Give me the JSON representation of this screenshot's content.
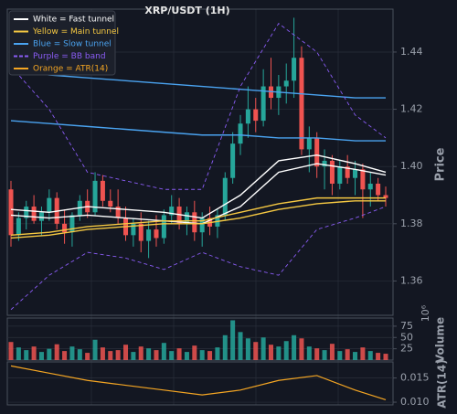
{
  "chart_data": {
    "type": "candlestick",
    "title": "XRP/USDT (1H)",
    "ylabel": "Price",
    "volume_label": "Volume",
    "volume_offset": "10⁶",
    "atr_label": "ATR(14)",
    "legend": [
      "White = Fast tunnel",
      "Yellow = Main tunnel",
      "Blue = Slow tunnel",
      "Purple = BB band",
      "Orange = ATR(14)"
    ],
    "legend_colors": [
      "#ffffff",
      "#f5c842",
      "#4aa3f0",
      "#8a5cf5",
      "#f5a623"
    ],
    "legend_loc": "upper left",
    "up_color": "#26a69a",
    "down_color": "#ef5350",
    "ylim": [
      1.348,
      1.455
    ],
    "yticks": [
      1.36,
      1.38,
      {
        "value": 1.4,
        "label": "1.40"
      },
      1.42,
      1.44
    ],
    "volume_ylim": [
      0,
      93
    ],
    "volume_yticks": [
      25,
      50,
      75
    ],
    "atr_ylim": [
      0.00944,
      0.01833
    ],
    "atr_yticks": [
      {
        "value": 0.01,
        "label": "0.010"
      },
      0.015
    ],
    "open": [
      1.392,
      1.376,
      1.382,
      1.386,
      1.381,
      1.384,
      1.389,
      1.38,
      1.377,
      1.383,
      1.388,
      1.384,
      1.395,
      1.388,
      1.386,
      1.382,
      1.376,
      1.38,
      1.374,
      1.378,
      1.375,
      1.383,
      1.386,
      1.38,
      1.384,
      1.377,
      1.382,
      1.379,
      1.383,
      1.396,
      1.408,
      1.415,
      1.42,
      1.416,
      1.428,
      1.424,
      1.428,
      1.43,
      1.438,
      1.406,
      1.41,
      1.4,
      1.402,
      1.394,
      1.4,
      1.396,
      1.399,
      1.392,
      1.394,
      1.39
    ],
    "high": [
      1.395,
      1.384,
      1.388,
      1.39,
      1.386,
      1.392,
      1.391,
      1.385,
      1.384,
      1.39,
      1.392,
      1.398,
      1.397,
      1.392,
      1.392,
      1.386,
      1.382,
      1.384,
      1.381,
      1.383,
      1.385,
      1.39,
      1.389,
      1.386,
      1.388,
      1.384,
      1.386,
      1.385,
      1.398,
      1.412,
      1.418,
      1.428,
      1.424,
      1.434,
      1.438,
      1.432,
      1.436,
      1.452,
      1.442,
      1.414,
      1.412,
      1.406,
      1.404,
      1.402,
      1.404,
      1.402,
      1.401,
      1.398,
      1.396,
      1.393
    ],
    "low": [
      1.372,
      1.374,
      1.378,
      1.38,
      1.376,
      1.381,
      1.378,
      1.373,
      1.372,
      1.381,
      1.382,
      1.383,
      1.386,
      1.384,
      1.38,
      1.374,
      1.372,
      1.37,
      1.368,
      1.372,
      1.373,
      1.38,
      1.378,
      1.376,
      1.374,
      1.372,
      1.376,
      1.375,
      1.381,
      1.394,
      1.404,
      1.41,
      1.412,
      1.414,
      1.42,
      1.418,
      1.422,
      1.424,
      1.404,
      1.398,
      1.396,
      1.392,
      1.39,
      1.392,
      1.394,
      1.39,
      1.382,
      1.386,
      1.388,
      1.386
    ],
    "close": [
      1.376,
      1.382,
      1.386,
      1.381,
      1.384,
      1.389,
      1.38,
      1.377,
      1.383,
      1.388,
      1.384,
      1.395,
      1.388,
      1.386,
      1.382,
      1.376,
      1.38,
      1.374,
      1.378,
      1.375,
      1.383,
      1.386,
      1.38,
      1.384,
      1.377,
      1.382,
      1.379,
      1.383,
      1.396,
      1.408,
      1.415,
      1.42,
      1.416,
      1.428,
      1.424,
      1.428,
      1.43,
      1.438,
      1.406,
      1.41,
      1.4,
      1.402,
      1.394,
      1.4,
      1.396,
      1.399,
      1.392,
      1.394,
      1.39,
      1.389
    ],
    "volume": [
      40,
      28,
      22,
      30,
      18,
      25,
      35,
      20,
      30,
      24,
      16,
      45,
      28,
      20,
      22,
      34,
      18,
      30,
      26,
      22,
      38,
      20,
      26,
      18,
      32,
      22,
      20,
      28,
      55,
      88,
      62,
      48,
      40,
      50,
      34,
      30,
      42,
      55,
      48,
      30,
      26,
      22,
      36,
      20,
      24,
      18,
      28,
      20,
      16,
      14
    ],
    "line_x": [
      0,
      5,
      10,
      15,
      20,
      25,
      30,
      35,
      40,
      45,
      49
    ],
    "lines": [
      {
        "color": "#ffffff",
        "dash": false,
        "values": [
          1.385,
          1.384,
          1.386,
          1.385,
          1.384,
          1.382,
          1.39,
          1.402,
          1.404,
          1.401,
          1.398
        ]
      },
      {
        "color": "#ffffff",
        "dash": false,
        "values": [
          1.383,
          1.382,
          1.383,
          1.382,
          1.381,
          1.38,
          1.386,
          1.398,
          1.401,
          1.399,
          1.397
        ]
      },
      {
        "color": "#f5c842",
        "dash": false,
        "values": [
          1.376,
          1.377,
          1.379,
          1.38,
          1.381,
          1.381,
          1.384,
          1.387,
          1.389,
          1.389,
          1.389
        ]
      },
      {
        "color": "#f5c842",
        "dash": false,
        "values": [
          1.375,
          1.376,
          1.378,
          1.379,
          1.38,
          1.38,
          1.382,
          1.385,
          1.387,
          1.388,
          1.388
        ]
      },
      {
        "color": "#4aa3f0",
        "dash": false,
        "values": [
          1.434,
          1.432,
          1.431,
          1.43,
          1.429,
          1.428,
          1.427,
          1.426,
          1.425,
          1.424,
          1.424
        ]
      },
      {
        "color": "#4aa3f0",
        "dash": false,
        "values": [
          1.416,
          1.415,
          1.414,
          1.413,
          1.412,
          1.411,
          1.411,
          1.41,
          1.41,
          1.409,
          1.409
        ]
      },
      {
        "color": "#8a5cf5",
        "dash": true,
        "values": [
          1.435,
          1.42,
          1.398,
          1.395,
          1.392,
          1.392,
          1.428,
          1.45,
          1.44,
          1.418,
          1.41
        ]
      },
      {
        "color": "#8a5cf5",
        "dash": true,
        "values": [
          1.35,
          1.362,
          1.37,
          1.368,
          1.364,
          1.37,
          1.365,
          1.362,
          1.378,
          1.382,
          1.386
        ]
      }
    ],
    "atr_color": "#f5a623",
    "atr": [
      0.0175,
      0.016,
      0.0145,
      0.0135,
      0.0125,
      0.0115,
      0.0125,
      0.0145,
      0.0155,
      0.0125,
      0.0105
    ]
  }
}
